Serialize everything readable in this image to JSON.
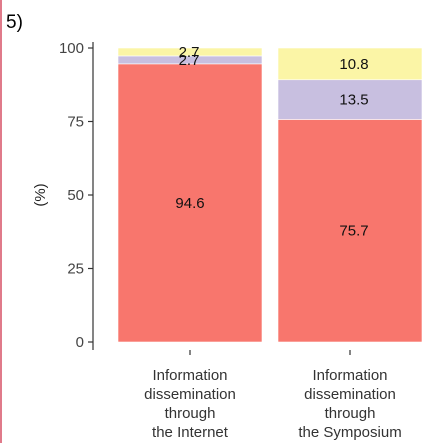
{
  "panel_label": "5)",
  "colors": {
    "segment_bottom": "#f8766d",
    "segment_middle": "#c8bfe0",
    "segment_top": "#fbf5a6",
    "axis": "#333333",
    "edge_rule": "#e07a8a"
  },
  "chart_data": {
    "type": "bar",
    "stacked": true,
    "title": "",
    "xlabel": "",
    "ylabel": "(%)",
    "ylim": [
      0,
      100
    ],
    "yticks": [
      0,
      25,
      50,
      75,
      100
    ],
    "grid": false,
    "legend": "none",
    "categories": [
      [
        "Information",
        "dissemination",
        "through",
        "the Internet"
      ],
      [
        "Information",
        "dissemination",
        "through",
        "the Symposium"
      ]
    ],
    "series": [
      {
        "values": [
          94.6,
          75.7
        ],
        "color_key": "segment_bottom"
      },
      {
        "values": [
          2.7,
          13.5
        ],
        "color_key": "segment_middle"
      },
      {
        "values": [
          2.7,
          10.8
        ],
        "color_key": "segment_top"
      }
    ],
    "data_labels": [
      [
        "94.6",
        "2.7",
        "2.7"
      ],
      [
        "75.7",
        "13.5",
        "10.8"
      ]
    ]
  }
}
